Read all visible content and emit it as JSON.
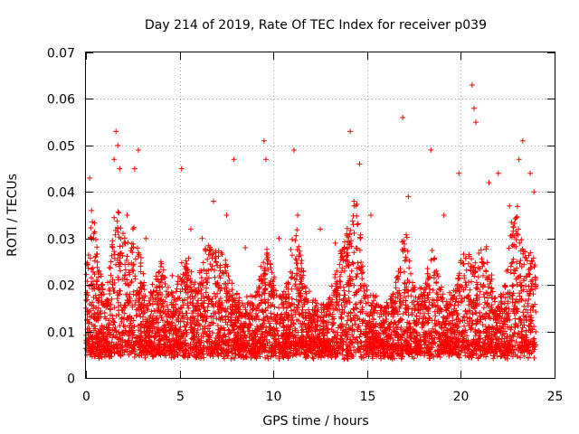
{
  "chart_data": {
    "type": "scatter",
    "title": "Day 214 of 2019, Rate Of TEC Index for receiver p039",
    "xlabel": "GPS time / hours",
    "ylabel": "ROTI / TECUs",
    "xlim": [
      0,
      25
    ],
    "ylim": [
      0,
      0.07
    ],
    "xticks": [
      0,
      5,
      10,
      15,
      20,
      25
    ],
    "yticks": [
      0,
      0.01,
      0.02,
      0.03,
      0.04,
      0.05,
      0.06,
      0.07
    ],
    "xtick_labels": [
      "0",
      "5",
      "10",
      "15",
      "20",
      "25"
    ],
    "ytick_labels": [
      "0",
      "0.01",
      "0.02",
      "0.03",
      "0.04",
      "0.05",
      "0.06",
      "0.07"
    ],
    "grid": true,
    "marker": "+",
    "color": "#ff0000",
    "series": [
      {
        "name": "ROTI",
        "note": "dense point cloud; representative values read from plot",
        "x": [
          0.2,
          0.3,
          0.4,
          0.5,
          1.5,
          1.6,
          1.7,
          1.8,
          2.2,
          2.6,
          2.8,
          3.2,
          4.0,
          4.6,
          5.1,
          5.6,
          6.2,
          6.8,
          7.5,
          7.9,
          8.5,
          9.5,
          9.6,
          10.3,
          11.1,
          11.3,
          12.5,
          13.3,
          14.1,
          14.3,
          14.6,
          15.2,
          16.9,
          17.2,
          18.4,
          19.1,
          19.9,
          20.6,
          20.7,
          20.8,
          21.5,
          22.0,
          22.6,
          23.1,
          23.3,
          23.7,
          23.9
        ],
        "y": [
          0.043,
          0.036,
          0.03,
          0.026,
          0.047,
          0.053,
          0.05,
          0.045,
          0.035,
          0.045,
          0.049,
          0.03,
          0.025,
          0.022,
          0.045,
          0.032,
          0.03,
          0.038,
          0.035,
          0.047,
          0.028,
          0.051,
          0.047,
          0.03,
          0.049,
          0.035,
          0.032,
          0.029,
          0.053,
          0.037,
          0.046,
          0.035,
          0.056,
          0.039,
          0.049,
          0.035,
          0.044,
          0.063,
          0.058,
          0.055,
          0.042,
          0.044,
          0.037,
          0.047,
          0.051,
          0.044,
          0.04
        ]
      }
    ]
  }
}
